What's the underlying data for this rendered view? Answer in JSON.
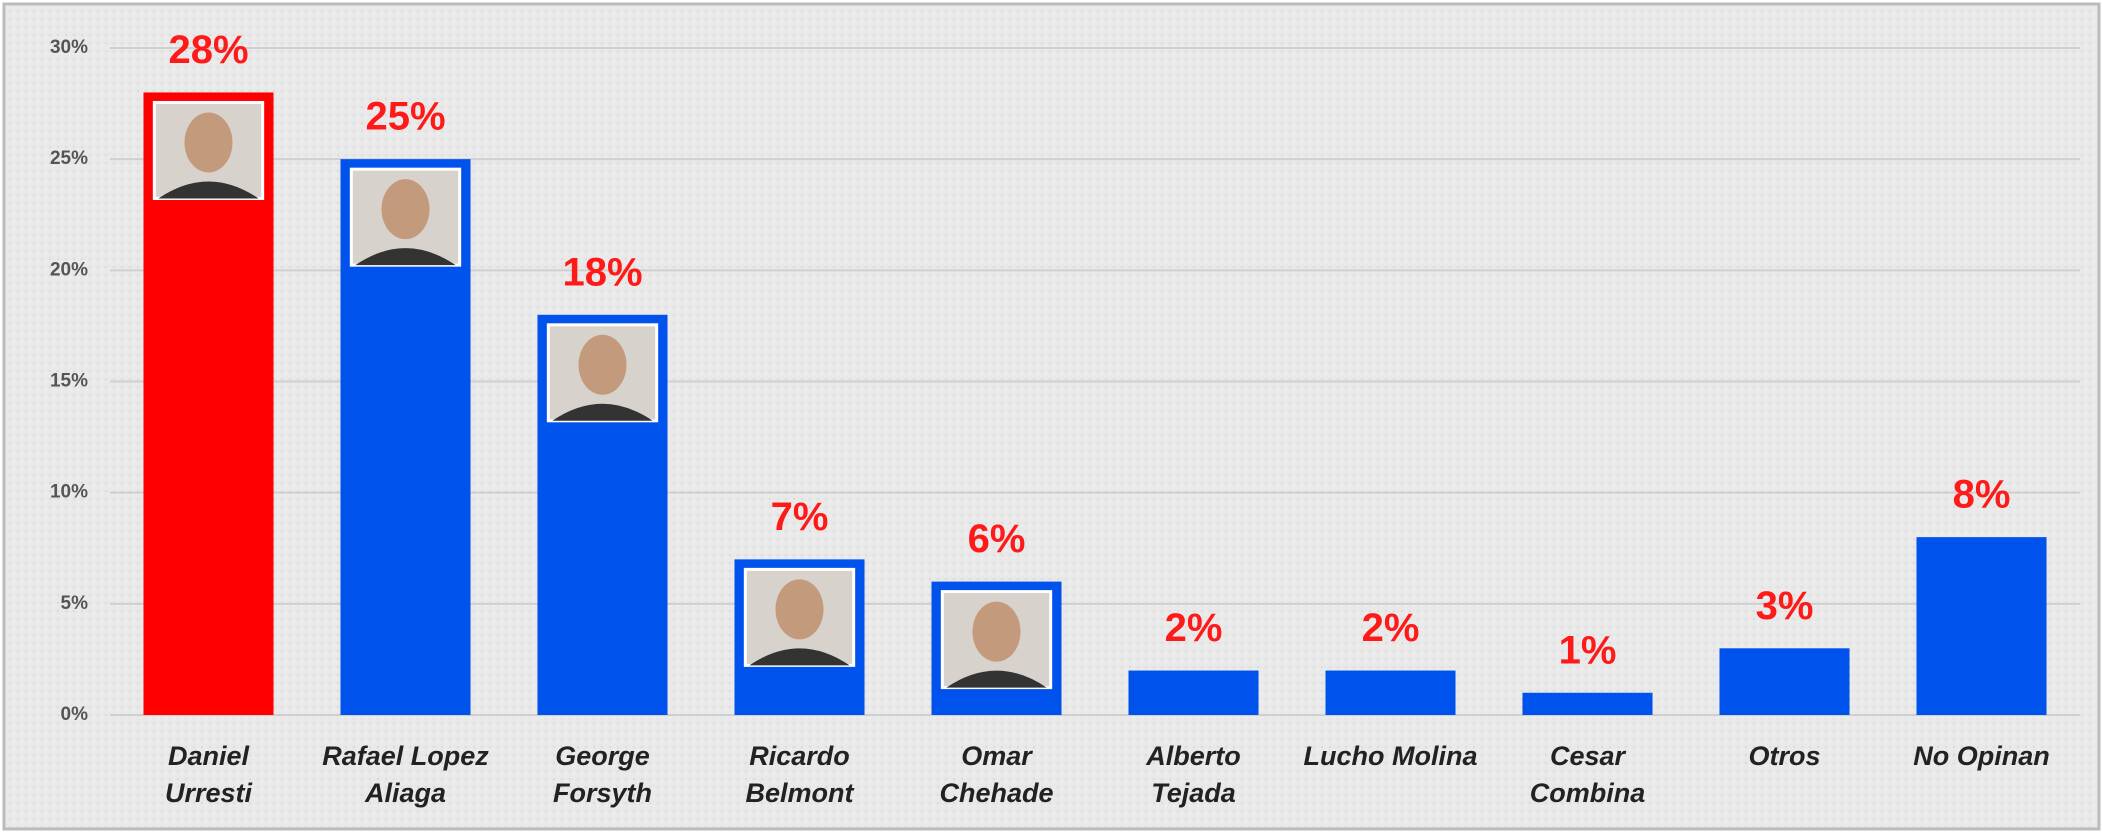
{
  "chart_data": {
    "type": "bar",
    "categories": [
      "Daniel\nUrresti",
      "Rafael Lopez\nAliaga",
      "George\nForsyth",
      "Ricardo\nBelmont",
      "Omar\nChehade",
      "Alberto\nTejada",
      "Lucho Molina",
      "Cesar\nCombina",
      "Otros",
      "No Opinan"
    ],
    "values": [
      28,
      25,
      18,
      7,
      6,
      2,
      2,
      1,
      3,
      8
    ],
    "value_labels": [
      "28%",
      "25%",
      "18%",
      "7%",
      "6%",
      "2%",
      "2%",
      "1%",
      "3%",
      "8%"
    ],
    "colors": [
      "#ff0000",
      "#0052ec",
      "#0052ec",
      "#0052ec",
      "#0052ec",
      "#0052ec",
      "#0052ec",
      "#0052ec",
      "#0052ec",
      "#0052ec"
    ],
    "ylim": [
      0,
      30
    ],
    "yticks": [
      {
        "value": 0,
        "label": "0%"
      },
      {
        "value": 5,
        "label": "5%"
      },
      {
        "value": 10,
        "label": "10%"
      },
      {
        "value": 15,
        "label": "15%"
      },
      {
        "value": 20,
        "label": "20%"
      },
      {
        "value": 25,
        "label": "25%"
      },
      {
        "value": 30,
        "label": "30%"
      }
    ],
    "grid": true
  }
}
